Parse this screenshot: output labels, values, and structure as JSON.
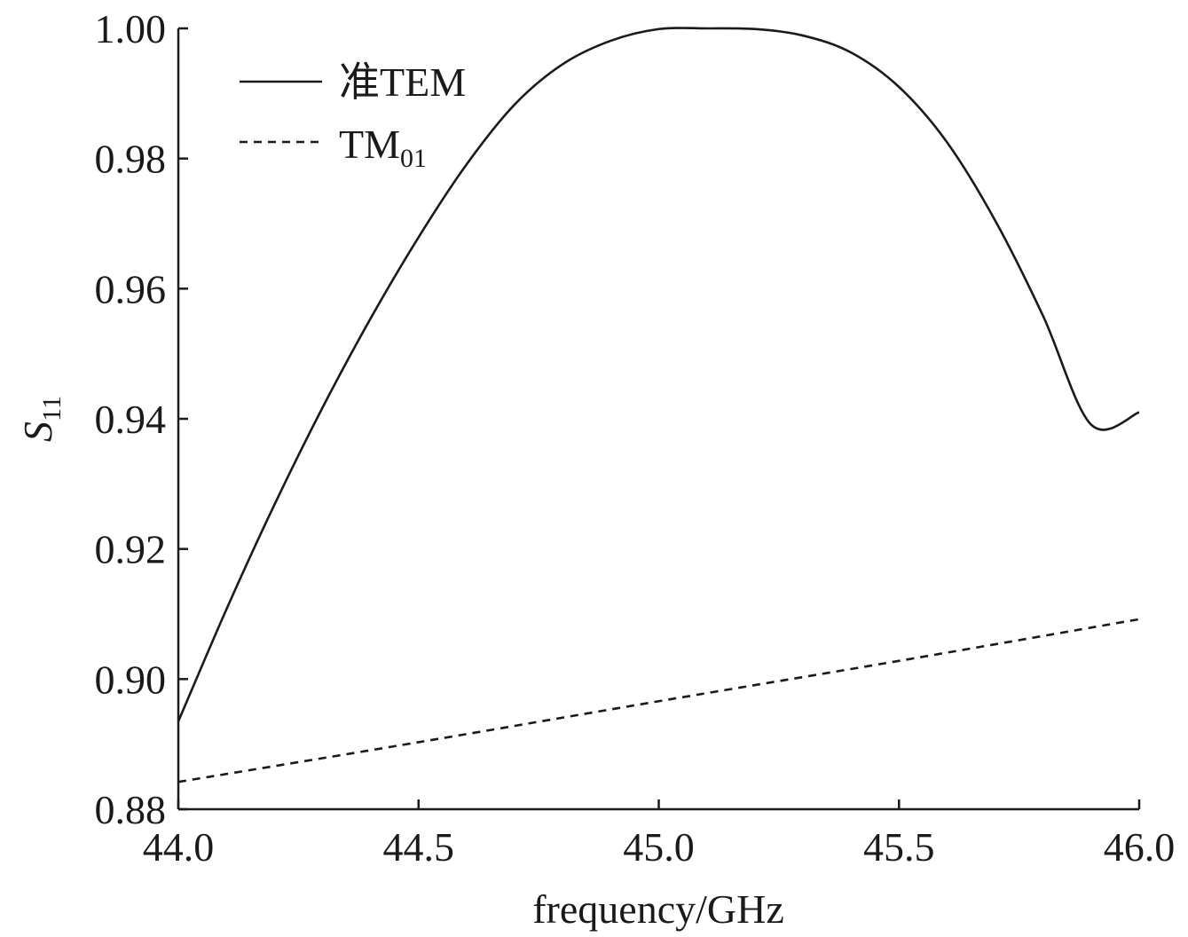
{
  "chart_data": {
    "type": "line",
    "title": "",
    "xlabel": "frequency/GHz",
    "ylabel": {
      "main": "S",
      "sub": "11"
    },
    "xlim": [
      44.0,
      46.0
    ],
    "ylim": [
      0.88,
      1.0
    ],
    "xticks": [
      44.0,
      44.5,
      45.0,
      45.5,
      46.0
    ],
    "xtick_labels": [
      "44.0",
      "44.5",
      "45.0",
      "45.5",
      "46.0"
    ],
    "yticks": [
      0.88,
      0.9,
      0.92,
      0.94,
      0.96,
      0.98,
      1.0
    ],
    "ytick_labels": [
      "0.88",
      "0.90",
      "0.92",
      "0.94",
      "0.96",
      "0.98",
      "1.00"
    ],
    "grid": false,
    "legend_position": "top-left",
    "series": [
      {
        "name": "准TEM",
        "label_main": "准TEM",
        "label_sub": "",
        "style": "solid",
        "color": "#1a1a1a",
        "x": [
          44.0,
          44.1,
          44.2,
          44.3,
          44.4,
          44.5,
          44.6,
          44.7,
          44.8,
          44.9,
          45.0,
          45.1,
          45.2,
          45.3,
          45.4,
          45.5,
          45.6,
          45.7,
          45.8,
          45.9,
          46.0
        ],
        "y": [
          0.8935,
          0.9107,
          0.9268,
          0.9417,
          0.9554,
          0.9679,
          0.9791,
          0.9883,
          0.9945,
          0.9981,
          0.9999,
          1.0,
          0.9999,
          0.9989,
          0.9963,
          0.991,
          0.9825,
          0.9705,
          0.9558,
          0.9391,
          0.941
        ]
      },
      {
        "name": "TM01",
        "label_main": "TM",
        "label_sub": "01",
        "style": "dashed",
        "color": "#1a1a1a",
        "x": [
          44.0,
          44.5,
          45.0,
          45.5,
          46.0
        ],
        "y": [
          0.8842,
          0.8903,
          0.8966,
          0.9028,
          0.9092
        ]
      }
    ]
  }
}
